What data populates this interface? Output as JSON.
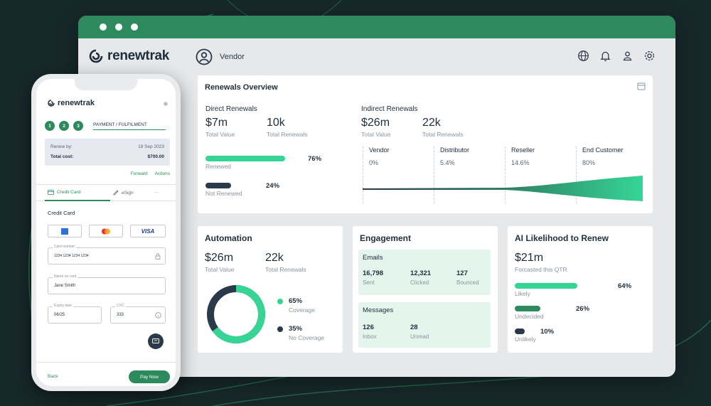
{
  "app": {
    "brand": "renewtrak",
    "user_label": "Vendor",
    "header_icons": [
      "globe-icon",
      "bell-icon",
      "user-icon",
      "gear-icon"
    ],
    "colors": {
      "brand_green": "#2d8a5d",
      "accent_green": "#36d596",
      "navy": "#2b3a4b",
      "bg": "#17282a"
    }
  },
  "renewals_overview": {
    "title": "Renewals Overview",
    "direct": {
      "heading": "Direct Renewals",
      "total_value": "$7m",
      "total_value_label": "Total Value",
      "total_renewals": "10k",
      "total_renewals_label": "Total Renewals",
      "renewed_pct": "76%",
      "renewed_label": "Renewed",
      "renewed_fraction": 0.76,
      "not_renewed_pct": "24%",
      "not_renewed_label": "Not Renewed",
      "not_renewed_fraction": 0.24
    },
    "indirect": {
      "heading": "Indirect Renewals",
      "total_value": "$26m",
      "total_value_label": "Total Value",
      "total_renewals": "22k",
      "total_renewals_label": "Total Renewals",
      "channels": [
        {
          "name": "Vendor",
          "value": "0%"
        },
        {
          "name": "Distributor",
          "value": "5.4%"
        },
        {
          "name": "Reseller",
          "value": "14.6%"
        },
        {
          "name": "End Customer",
          "value": "80%"
        }
      ]
    }
  },
  "automation": {
    "title": "Automation",
    "total_value": "$26m",
    "total_value_label": "Total Value",
    "total_renewals": "22k",
    "total_renewals_label": "Total Renewals",
    "coverage_pct": "65%",
    "coverage_label": "Coverage",
    "coverage_fraction": 0.65,
    "no_coverage_pct": "35%",
    "no_coverage_label": "No Coverage"
  },
  "engagement": {
    "title": "Engagement",
    "emails": {
      "label": "Emails",
      "sent": "16,798",
      "sent_label": "Sent",
      "clicked": "12,321",
      "clicked_label": "Clicked",
      "bounced": "127",
      "bounced_label": "Bounced"
    },
    "messages": {
      "label": "Messages",
      "inbox": "126",
      "inbox_label": "Inbox",
      "unread": "28",
      "unread_label": "Unread"
    }
  },
  "ai": {
    "title": "AI Likelihood to Renew",
    "value": "$21m",
    "value_label": "Forcasted this QTR",
    "likely_pct": "64%",
    "likely_label": "Likely",
    "likely_fraction": 0.64,
    "undecided_pct": "26%",
    "undecided_label": "Undecided",
    "undecided_fraction": 0.26,
    "unlikely_pct": "10%",
    "unlikely_label": "Unlikely",
    "unlikely_fraction": 0.1
  },
  "phone": {
    "brand": "renewtrak",
    "steps": [
      "1",
      "2",
      "3"
    ],
    "step_label": "PAYMENT / FULFILMENT",
    "renew_by_label": "Renew by:",
    "renew_by_value": "18 Sep 2023",
    "total_cost_label": "Total cost:",
    "total_cost_value": "$700.00",
    "forward_label": "Forward",
    "actions_label": "Actions",
    "tab_credit": "Credit Card",
    "tab_esign": "eSign",
    "tab_more": "···",
    "section_title": "Credit Card",
    "card_brands": [
      "AMEX",
      "",
      "VISA"
    ],
    "card_number_label": "Card number",
    "card_number_value": "1234 1234 1234 1234",
    "name_label": "Name on card",
    "name_value": "Jane Smith",
    "expiry_label": "Expiry date",
    "expiry_value": "06/25",
    "cvc_label": "CVC",
    "cvc_value": "333",
    "back_label": "Back",
    "pay_label": "Pay Now"
  }
}
